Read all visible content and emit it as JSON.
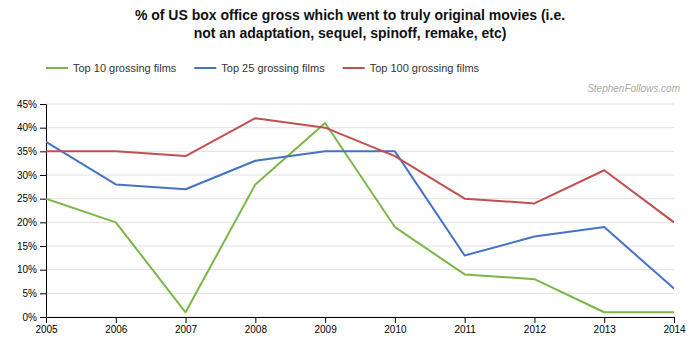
{
  "chart_data": {
    "type": "line",
    "title": "% of US box office gross which went to truly original movies (i.e.\nnot an adaptation, sequel, spinoff, remake, etc)",
    "annotations": [
      "StephenFollows.com"
    ],
    "x": [
      2005,
      2006,
      2007,
      2008,
      2009,
      2010,
      2011,
      2012,
      2013,
      2014
    ],
    "series": [
      {
        "name": "Top 10 grossing films",
        "color": "#7ab648",
        "values": [
          25,
          20,
          1,
          28,
          41,
          19,
          9,
          8,
          1,
          1
        ]
      },
      {
        "name": "Top 25 grossing films",
        "color": "#4472c4",
        "values": [
          37,
          28,
          27,
          33,
          35,
          35,
          13,
          17,
          19,
          6
        ]
      },
      {
        "name": "Top 100 grossing films",
        "color": "#c0504d",
        "values": [
          35,
          35,
          34,
          42,
          40,
          34,
          25,
          24,
          31,
          20
        ]
      }
    ],
    "xlim": [
      2005,
      2014
    ],
    "xticks": [
      2005,
      2006,
      2007,
      2008,
      2009,
      2010,
      2011,
      2012,
      2013,
      2014
    ],
    "ylim": [
      0,
      45
    ],
    "yticks": [
      {
        "value": 0,
        "label": "0%"
      },
      {
        "value": 5,
        "label": "5%"
      },
      {
        "value": 10,
        "label": "10%"
      },
      {
        "value": 15,
        "label": "15%"
      },
      {
        "value": 20,
        "label": "20%"
      },
      {
        "value": 25,
        "label": "25%"
      },
      {
        "value": 30,
        "label": "30%"
      },
      {
        "value": 35,
        "label": "35%"
      },
      {
        "value": 40,
        "label": "40%"
      },
      {
        "value": 45,
        "label": "45%"
      }
    ],
    "grid": true,
    "legend": "top-left"
  }
}
